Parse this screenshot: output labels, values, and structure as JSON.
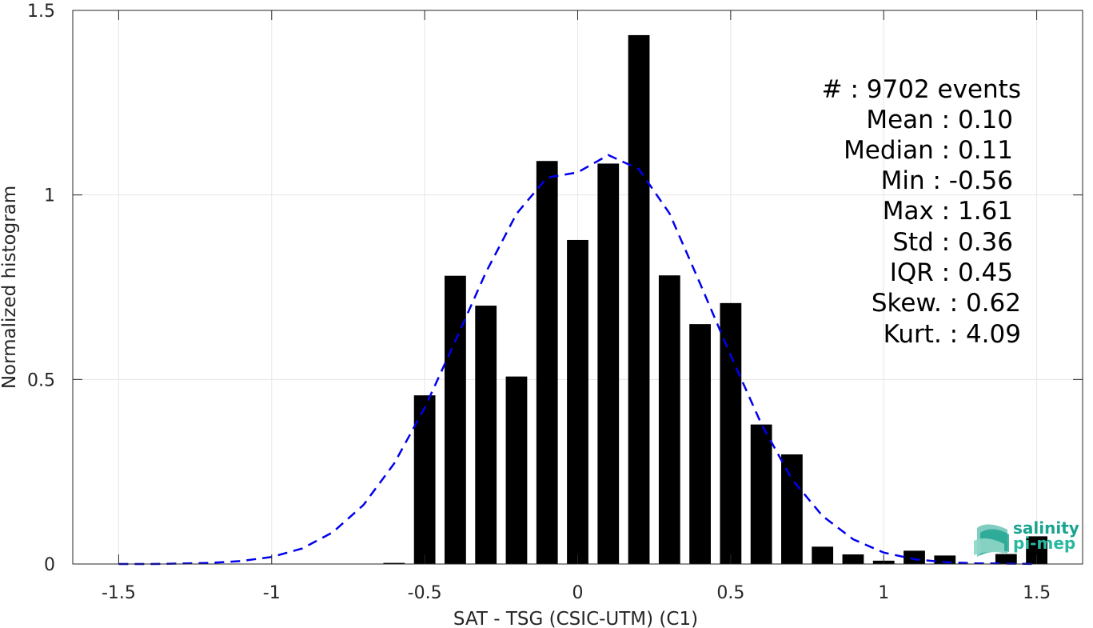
{
  "chart_data": {
    "type": "bar",
    "xlabel": "SAT - TSG (CSIC-UTM) (C1)",
    "ylabel": "Normalized histogram",
    "xlim": [
      -1.65,
      1.65
    ],
    "ylim": [
      0,
      1.5
    ],
    "xticks": [
      -1.5,
      -1,
      -0.5,
      0,
      0.5,
      1,
      1.5
    ],
    "xtick_labels": [
      "-1.5",
      "-1",
      "-0.5",
      "0",
      "0.5",
      "1",
      "1.5"
    ],
    "yticks": [
      0,
      0.5,
      1,
      1.5
    ],
    "ytick_labels": [
      "0",
      "0.5",
      "1",
      "1.5"
    ],
    "grid": true,
    "bar_width": 0.07,
    "series": [
      {
        "type": "bar",
        "color": "#000000",
        "x": [
          -0.6,
          -0.5,
          -0.4,
          -0.3,
          -0.2,
          -0.1,
          0.0,
          0.1,
          0.2,
          0.3,
          0.4,
          0.5,
          0.6,
          0.7,
          0.8,
          0.9,
          1.0,
          1.1,
          1.2,
          1.3,
          1.4,
          1.5
        ],
        "values": [
          0.003,
          0.457,
          0.781,
          0.7,
          0.508,
          1.092,
          0.878,
          1.085,
          1.433,
          0.782,
          0.65,
          0.707,
          0.378,
          0.297,
          0.047,
          0.026,
          0.009,
          0.036,
          0.023,
          0.0,
          0.027,
          0.075
        ]
      },
      {
        "type": "line",
        "style": "dashed",
        "color": "#0000ee",
        "x": [
          -1.5,
          -1.4,
          -1.3,
          -1.2,
          -1.1,
          -1.0,
          -0.9,
          -0.8,
          -0.7,
          -0.6,
          -0.5,
          -0.4,
          -0.3,
          -0.2,
          -0.1,
          0.0,
          0.1,
          0.2,
          0.3,
          0.4,
          0.5,
          0.6,
          0.7,
          0.8,
          0.9,
          1.0,
          1.1,
          1.2,
          1.3,
          1.4,
          1.5
        ],
        "values": [
          0.0,
          0.0,
          0.001,
          0.003,
          0.008,
          0.019,
          0.042,
          0.086,
          0.16,
          0.272,
          0.423,
          0.604,
          0.79,
          0.949,
          1.047,
          1.061,
          1.108,
          1.07,
          0.95,
          0.76,
          0.565,
          0.38,
          0.23,
          0.13,
          0.067,
          0.031,
          0.013,
          0.005,
          0.002,
          0.001,
          0.0
        ]
      }
    ],
    "annotations": [
      {
        "name": "count",
        "text": "#  : 9702 events"
      },
      {
        "name": "mean",
        "text": "Mean : 0.10"
      },
      {
        "name": "median",
        "text": "Median : 0.11"
      },
      {
        "name": "min",
        "text": "Min : -0.56"
      },
      {
        "name": "max",
        "text": "Max : 1.61"
      },
      {
        "name": "std",
        "text": "Std : 0.36"
      },
      {
        "name": "iqr",
        "text": "IQR : 0.45"
      },
      {
        "name": "skew",
        "text": "Skew. : 0.62"
      },
      {
        "name": "kurt",
        "text": "Kurt. : 4.09"
      }
    ],
    "logo": {
      "line1": "salinity",
      "line2": "pi-mep",
      "color": "#1aa38e"
    }
  }
}
